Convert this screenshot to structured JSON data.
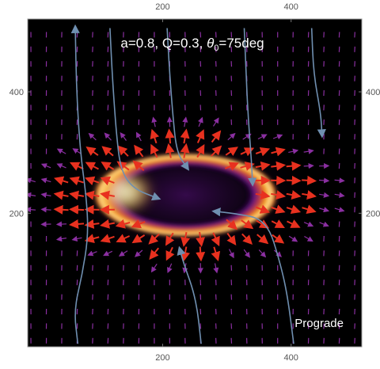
{
  "chart_data": {
    "type": "heatmap",
    "title_parts": {
      "prefix": "a=0.8, Q=0.3, ",
      "theta": "θ",
      "sub": "0",
      "suffix": "=75deg"
    },
    "annotation": "Prograde",
    "xlabel": "",
    "ylabel": "",
    "xlim": [
      -10,
      510
    ],
    "ylim": [
      520,
      -20
    ],
    "x_ticks": [
      200,
      400
    ],
    "y_ticks": [
      200,
      400
    ],
    "grid": false,
    "colormap": "inferno",
    "colors": {
      "background": "#000000",
      "streamline": "#6f8fb0",
      "arrow_inner": "#e8311f",
      "arrow_outer": "#8a2fa0"
    },
    "ring": {
      "cx": 236,
      "cy": 230,
      "rx": 145,
      "ry": 70,
      "bright_side": "left"
    },
    "streamlines": [
      [
        [
          68,
          -15
        ],
        [
          62,
          40
        ],
        [
          75,
          100
        ],
        [
          84,
          160
        ],
        [
          82,
          220
        ],
        [
          72,
          300
        ],
        [
          66,
          400
        ],
        [
          64,
          505
        ]
      ],
      [
        [
          118,
          505
        ],
        [
          122,
          420
        ],
        [
          128,
          330
        ],
        [
          135,
          270
        ],
        [
          155,
          240
        ],
        [
          192,
          225
        ]
      ],
      [
        [
          260,
          -15
        ],
        [
          252,
          60
        ],
        [
          232,
          120
        ],
        [
          227,
          140
        ]
      ],
      [
        [
          207,
          505
        ],
        [
          211,
          430
        ],
        [
          216,
          360
        ],
        [
          222,
          300
        ],
        [
          238,
          275
        ]
      ],
      [
        [
          404,
          -15
        ],
        [
          395,
          60
        ],
        [
          384,
          115
        ],
        [
          362,
          190
        ],
        [
          310,
          200
        ],
        [
          282,
          203
        ]
      ],
      [
        [
          327,
          505
        ],
        [
          330,
          430
        ],
        [
          333,
          360
        ],
        [
          338,
          290
        ],
        [
          340,
          250
        ]
      ],
      [
        [
          432,
          505
        ],
        [
          435,
          430
        ],
        [
          446,
          365
        ],
        [
          448,
          330
        ]
      ]
    ]
  }
}
